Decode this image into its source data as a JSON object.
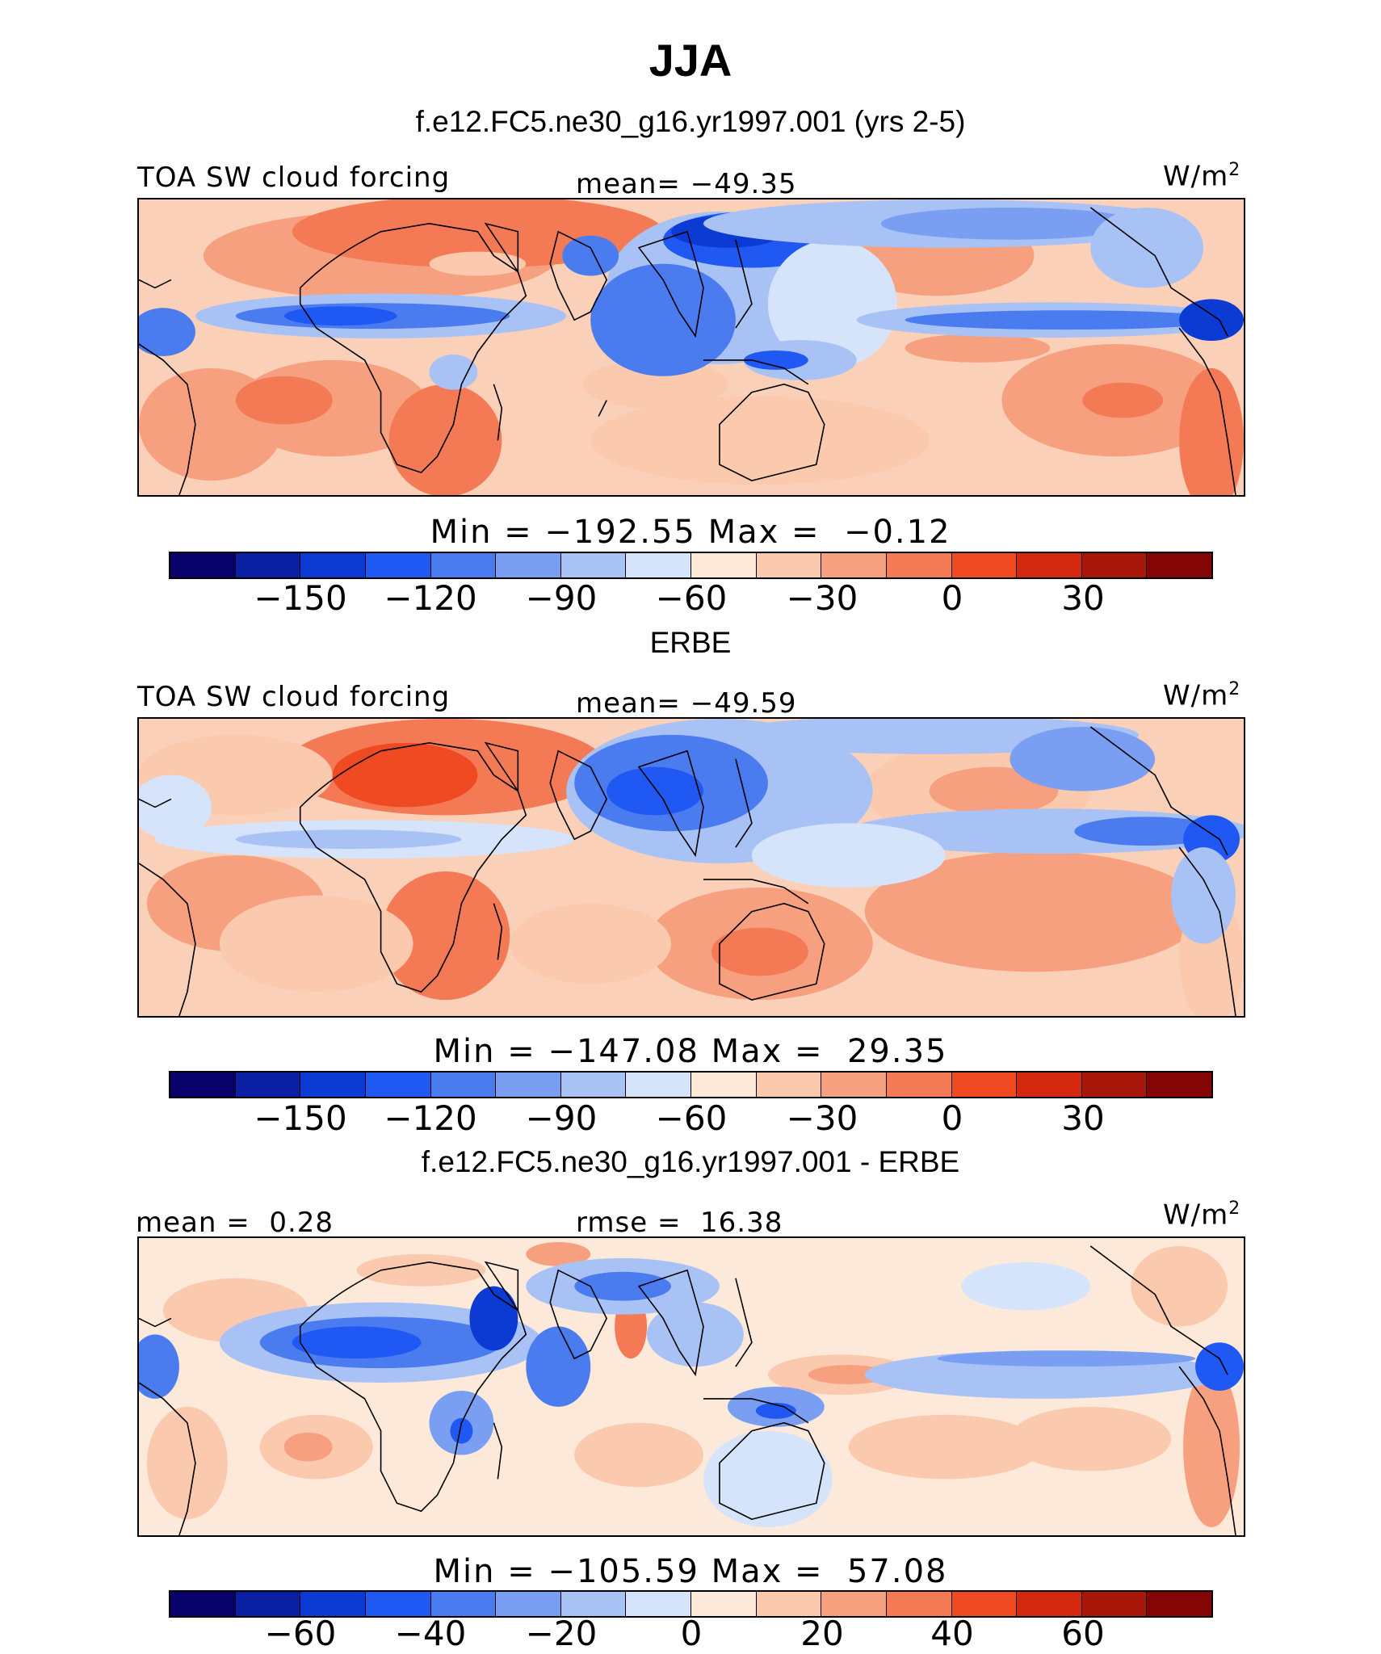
{
  "title": "JJA",
  "units_label": "W/m",
  "units_sup": "2",
  "palette": [
    "#08006b",
    "#0a1fa3",
    "#0b3bd2",
    "#1f58f2",
    "#4a7cf0",
    "#7a9ff2",
    "#a9c2f5",
    "#d6e4fb",
    "#fde9d9",
    "#fbc9ae",
    "#f7a07f",
    "#f47a56",
    "#ef4a22",
    "#d4290e",
    "#a8170a",
    "#830505"
  ],
  "panels": [
    {
      "subtitle": "f.e12.FC5.ne30_g16.yr1997.001 (yrs 2-5)",
      "left_label": "TOA SW cloud forcing",
      "center_label": "mean= −49.35",
      "colorbar_title": "Min = −192.55 Max =  −0.12",
      "ticks": [
        "−150",
        "−120",
        "−90",
        "−60",
        "−30",
        "0",
        "30"
      ]
    },
    {
      "subtitle": "ERBE",
      "left_label": "TOA SW cloud forcing",
      "center_label": "mean= −49.59",
      "colorbar_title": "Min = −147.08 Max =  29.35",
      "ticks": [
        "−150",
        "−120",
        "−90",
        "−60",
        "−30",
        "0",
        "30"
      ]
    },
    {
      "subtitle": "f.e12.FC5.ne30_g16.yr1997.001 - ERBE",
      "left_label": "mean =  0.28",
      "center_label": "rmse =  16.38",
      "colorbar_title": "Min = −105.59 Max =  57.08",
      "ticks": [
        "−60",
        "−40",
        "−20",
        "0",
        "20",
        "40",
        "60"
      ]
    }
  ]
}
